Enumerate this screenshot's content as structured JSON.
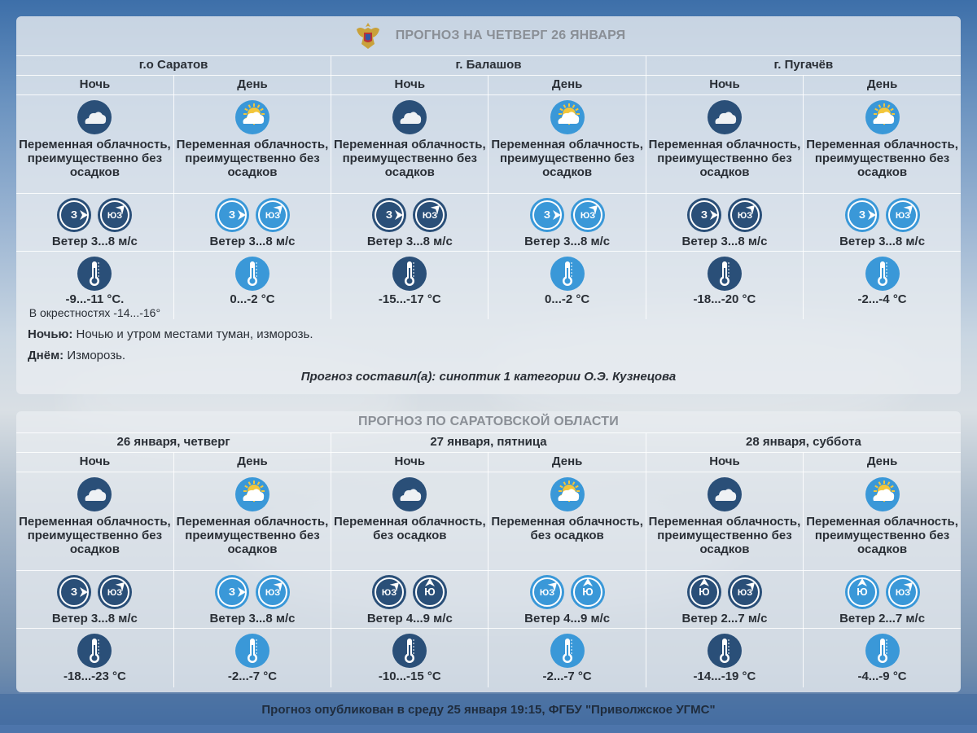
{
  "colors": {
    "night_icon": "#2a4f78",
    "day_icon": "#3a98d8",
    "sun": "#f3c63a",
    "title": "#8a8f96",
    "text": "#2a2f36"
  },
  "panel1": {
    "title": "ПРОГНОЗ НА ЧЕТВЕРГ 26 ЯНВАРЯ",
    "emblem": "coat-of-arms-icon",
    "cities": [
      "г.о Саратов",
      "г. Балашов",
      "г. Пугачёв"
    ],
    "periods": [
      "Ночь",
      "День",
      "Ночь",
      "День",
      "Ночь",
      "День"
    ],
    "cells": [
      {
        "sky": "cloud-night",
        "desc": "Переменная облачность, преимущественно без осадков",
        "wind_dirs": [
          "З",
          "ЮЗ"
        ],
        "wind": "Ветер 3...8 м/с",
        "temp": "-9...-11 °С.",
        "temp_sub": "В окрестностях -14...-16°"
      },
      {
        "sky": "cloud-sun",
        "desc": "Переменная облачность, преимущественно без осадков",
        "wind_dirs": [
          "З",
          "ЮЗ"
        ],
        "wind": "Ветер 3...8 м/с",
        "temp": "0...-2 °С",
        "temp_sub": ""
      },
      {
        "sky": "cloud-night",
        "desc": "Переменная облачность, преимущественно без осадков",
        "wind_dirs": [
          "З",
          "ЮЗ"
        ],
        "wind": "Ветер 3...8 м/с",
        "temp": "-15...-17 °С",
        "temp_sub": ""
      },
      {
        "sky": "cloud-sun",
        "desc": "Переменная облачность, преимущественно без осадков",
        "wind_dirs": [
          "З",
          "ЮЗ"
        ],
        "wind": "Ветер 3...8 м/с",
        "temp": "0...-2 °С",
        "temp_sub": ""
      },
      {
        "sky": "cloud-night",
        "desc": "Переменная облачность, преимущественно без осадков",
        "wind_dirs": [
          "З",
          "ЮЗ"
        ],
        "wind": "Ветер 3...8 м/с",
        "temp": "-18...-20 °С",
        "temp_sub": ""
      },
      {
        "sky": "cloud-sun",
        "desc": "Переменная облачность, преимущественно без осадков",
        "wind_dirs": [
          "З",
          "ЮЗ"
        ],
        "wind": "Ветер 3...8 м/с",
        "temp": "-2...-4 °С",
        "temp_sub": ""
      }
    ],
    "night_label": "Ночью:",
    "night_text": "Ночью и утром местами туман, изморозь.",
    "day_label": "Днём:",
    "day_text": "Изморозь.",
    "author": "Прогноз составил(а): синоптик 1 категории О.Э. Кузнецова"
  },
  "panel2": {
    "title": "ПРОГНОЗ ПО САРАТОВСКОЙ ОБЛАСТИ",
    "dates": [
      "26 января, четверг",
      "27 января, пятница",
      "28 января, суббота"
    ],
    "periods": [
      "Ночь",
      "День",
      "Ночь",
      "День",
      "Ночь",
      "День"
    ],
    "cells": [
      {
        "sky": "cloud-night",
        "desc": "Переменная облачность, преимущественно без осадков",
        "wind_dirs": [
          "З",
          "ЮЗ"
        ],
        "wind": "Ветер 3...8 м/с",
        "temp": "-18...-23 °С"
      },
      {
        "sky": "cloud-sun",
        "desc": "Переменная облачность, преимущественно без осадков",
        "wind_dirs": [
          "З",
          "ЮЗ"
        ],
        "wind": "Ветер 3...8 м/с",
        "temp": "-2...-7 °С"
      },
      {
        "sky": "cloud-night",
        "desc": "Переменная облачность, без осадков",
        "wind_dirs": [
          "ЮЗ",
          "Ю"
        ],
        "wind": "Ветер 4...9 м/с",
        "temp": "-10...-15 °С"
      },
      {
        "sky": "cloud-sun",
        "desc": "Переменная облачность, без осадков",
        "wind_dirs": [
          "ЮЗ",
          "Ю"
        ],
        "wind": "Ветер 4...9 м/с",
        "temp": "-2...-7 °С"
      },
      {
        "sky": "cloud-night",
        "desc": "Переменная облачность, преимущественно без осадков",
        "wind_dirs": [
          "Ю",
          "ЮЗ"
        ],
        "wind": "Ветер 2...7 м/с",
        "temp": "-14...-19 °С"
      },
      {
        "sky": "cloud-sun",
        "desc": "Переменная облачность, преимущественно без осадков",
        "wind_dirs": [
          "Ю",
          "ЮЗ"
        ],
        "wind": "Ветер 2...7 м/с",
        "temp": "-4...-9 °С"
      }
    ]
  },
  "footer": "Прогноз опубликован в среду 25 января 19:15, ФГБУ \"Приволжское УГМС\""
}
